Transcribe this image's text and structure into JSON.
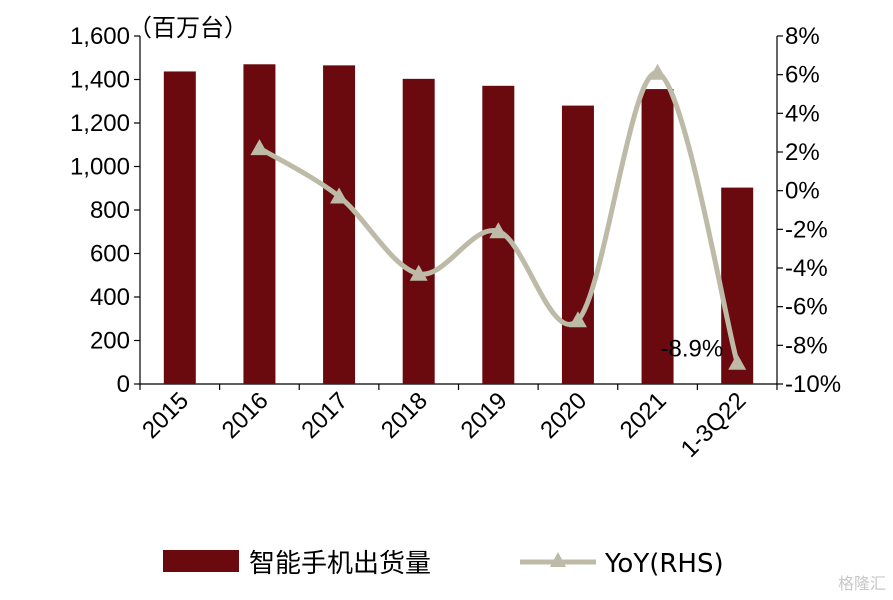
{
  "chart_data": {
    "type": "bar",
    "unit_label": "（百万台）",
    "categories": [
      "2015",
      "2016",
      "2017",
      "2018",
      "2019",
      "2020",
      "2021",
      "1-3Q22"
    ],
    "series": [
      {
        "name": "智能手机出货量",
        "axis": "left",
        "type": "bar",
        "color": "#6b0a0e",
        "values": [
          1437,
          1470,
          1465,
          1403,
          1371,
          1280,
          1356,
          903
        ]
      },
      {
        "name": "YoY(RHS)",
        "axis": "right",
        "type": "line",
        "marker": "triangle",
        "color": "#bdbaa8",
        "values": [
          null,
          2.2,
          -0.3,
          -4.3,
          -2.1,
          -6.7,
          6.1,
          -8.9
        ]
      }
    ],
    "y_left": {
      "min": 0,
      "max": 1600,
      "step": 200,
      "tick_labels": [
        "0",
        "200",
        "400",
        "600",
        "800",
        "1,000",
        "1,200",
        "1,400",
        "1,600"
      ]
    },
    "y_right": {
      "min": -10,
      "max": 8,
      "step": 2,
      "tick_labels": [
        "-10%",
        "-8%",
        "-6%",
        "-4%",
        "-2%",
        "0%",
        "2%",
        "4%",
        "6%",
        "8%"
      ]
    },
    "annotations": [
      {
        "text": "-8.9%",
        "category": "1-3Q22"
      }
    ],
    "legend_position": "bottom",
    "grid": false
  },
  "watermark": {
    "text": "格隆汇"
  }
}
